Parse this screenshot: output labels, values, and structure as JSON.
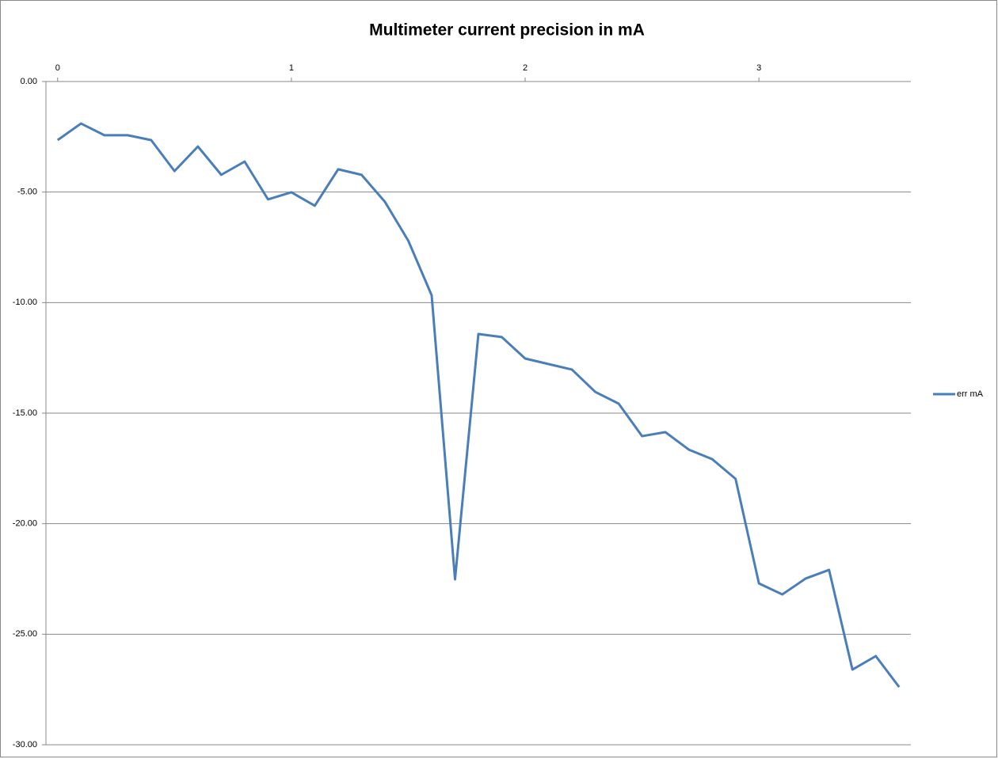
{
  "chart_data": {
    "type": "line",
    "title": "Multimeter current precision in mA",
    "x": [
      0,
      0.1,
      0.2,
      0.3,
      0.4,
      0.5,
      0.6,
      0.7,
      0.8,
      0.9,
      1.0,
      1.1,
      1.2,
      1.3,
      1.4,
      1.5,
      1.6,
      1.7,
      1.8,
      1.9,
      2.0,
      2.1,
      2.2,
      2.3,
      2.4,
      2.5,
      2.6,
      2.7,
      2.8,
      2.9,
      3.0,
      3.1,
      3.2,
      3.3,
      3.4,
      3.5,
      3.6
    ],
    "series": [
      {
        "name": "err mA",
        "color": "#4a7ebb",
        "values": [
          -2.65,
          -1.9,
          -2.43,
          -2.43,
          -2.65,
          -4.05,
          -2.94,
          -4.22,
          -3.62,
          -5.33,
          -5.01,
          -5.62,
          -3.97,
          -4.22,
          -5.44,
          -7.2,
          -9.67,
          -22.52,
          -11.42,
          -11.56,
          -12.53,
          -12.78,
          -13.03,
          -14.04,
          -14.57,
          -16.04,
          -15.86,
          -16.65,
          -17.08,
          -17.97,
          -22.7,
          -23.2,
          -22.48,
          -22.09,
          -26.6,
          -25.99,
          -27.39
        ]
      }
    ],
    "xlim": [
      -0.05,
      3.65
    ],
    "xticks": [
      0,
      1,
      2,
      3
    ],
    "ylim": [
      -30,
      0
    ],
    "yticks": [
      {
        "value": 0,
        "label": "0.00"
      },
      {
        "value": -5,
        "label": "-5.00"
      },
      {
        "value": -10,
        "label": "-10.00"
      },
      {
        "value": -15,
        "label": "-15.00"
      },
      {
        "value": -20,
        "label": "-20.00"
      },
      {
        "value": -25,
        "label": "-25.00"
      },
      {
        "value": -30,
        "label": "-30.00"
      }
    ],
    "grid": true,
    "legend": "right"
  }
}
